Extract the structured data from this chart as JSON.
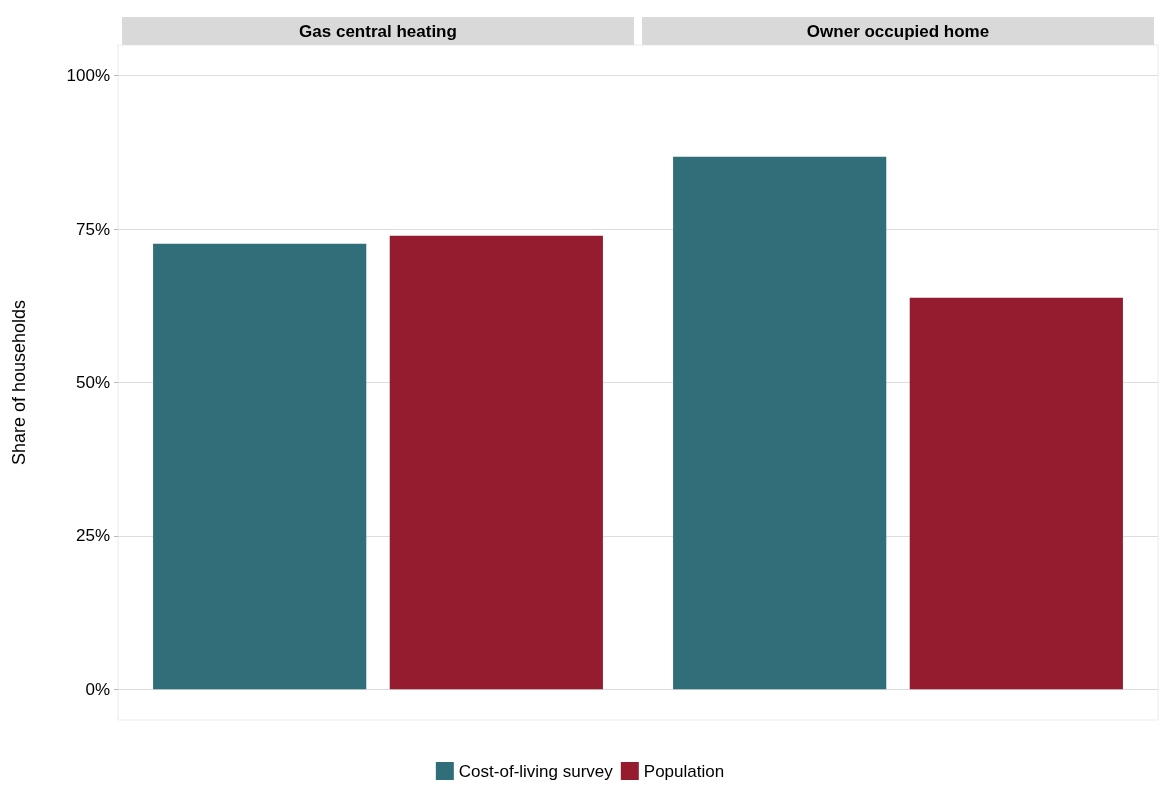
{
  "chart_data": {
    "type": "bar",
    "ylabel": "Share of households",
    "categories": [
      "Gas central heating",
      "Owner occupied home"
    ],
    "series": [
      {
        "name": "Cost-of-living survey",
        "color": "#306f79",
        "values": [
          72.6,
          86.8
        ]
      },
      {
        "name": "Population",
        "color": "#951c2f",
        "values": [
          73.9,
          63.8
        ]
      }
    ],
    "ylim": [
      -5,
      105
    ],
    "yticks": [
      {
        "value": 0,
        "label": "0%"
      },
      {
        "value": 25,
        "label": "25%"
      },
      {
        "value": 50,
        "label": "50%"
      },
      {
        "value": 75,
        "label": "75%"
      },
      {
        "value": 100,
        "label": "100%"
      }
    ],
    "grid": "y",
    "legend": "bottom"
  }
}
